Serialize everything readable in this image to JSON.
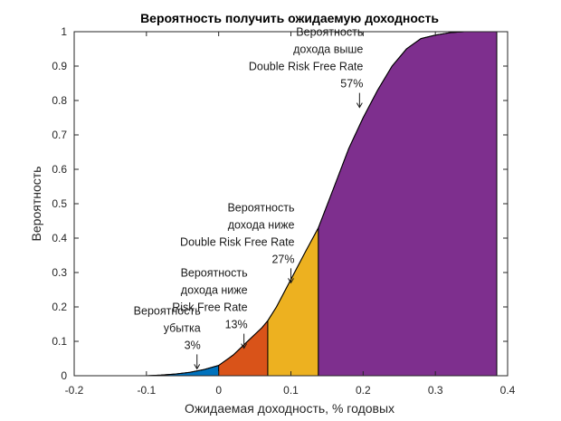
{
  "chart_data": {
    "type": "area",
    "title": "Вероятность получить ожидаемую доходность",
    "xlabel": "Ожидаемая доходность, % годовых",
    "ylabel": "Вероятность",
    "xlim": [
      -0.2,
      0.4
    ],
    "ylim": [
      0,
      1
    ],
    "xticks": [
      -0.2,
      -0.1,
      0,
      0.1,
      0.2,
      0.3,
      0.4
    ],
    "xtick_labels": [
      "-0.2",
      "-0.1",
      "0",
      "0.1",
      "0.2",
      "0.3",
      "0.4"
    ],
    "yticks": [
      0,
      0.1,
      0.2,
      0.3,
      0.4,
      0.5,
      0.6,
      0.7,
      0.8,
      0.9,
      1
    ],
    "ytick_labels": [
      "0",
      "0.1",
      "0.2",
      "0.3",
      "0.4",
      "0.5",
      "0.6",
      "0.7",
      "0.8",
      "0.9",
      "1"
    ],
    "grid": false,
    "curve": {
      "x": [
        -0.1,
        -0.08,
        -0.06,
        -0.04,
        -0.02,
        0,
        0.02,
        0.04,
        0.06,
        0.068,
        0.08,
        0.1,
        0.12,
        0.138,
        0.16,
        0.18,
        0.2,
        0.22,
        0.24,
        0.26,
        0.28,
        0.3,
        0.32,
        0.34,
        0.36,
        0.385
      ],
      "y": [
        0.0,
        0.002,
        0.005,
        0.01,
        0.018,
        0.03,
        0.06,
        0.1,
        0.14,
        0.16,
        0.2,
        0.28,
        0.36,
        0.43,
        0.55,
        0.66,
        0.75,
        0.83,
        0.9,
        0.95,
        0.98,
        0.99,
        0.997,
        1.0,
        1.0,
        1.0
      ]
    },
    "regions": [
      {
        "from": -0.1,
        "to": 0,
        "color": "#0072BD"
      },
      {
        "from": 0,
        "to": 0.068,
        "color": "#D95319"
      },
      {
        "from": 0.068,
        "to": 0.138,
        "color": "#EDB120"
      },
      {
        "from": 0.138,
        "to": 0.385,
        "color": "#7E2F8E"
      }
    ],
    "annotations": [
      {
        "lines": [
          "Вероятность",
          "убытка",
          "3%"
        ],
        "x": -0.03,
        "y": 0.02,
        "align": "end"
      },
      {
        "lines": [
          "Вероятность",
          "дохода ниже",
          "Risk Free Rate",
          "13%"
        ],
        "x": 0.035,
        "y": 0.08,
        "align": "end"
      },
      {
        "lines": [
          "Вероятность",
          "дохода ниже",
          "Double Risk Free Rate",
          "27%"
        ],
        "x": 0.1,
        "y": 0.27,
        "align": "end"
      },
      {
        "lines": [
          "Вероятность",
          "дохода выше",
          "Double Risk Free Rate",
          "57%"
        ],
        "x": 0.195,
        "y": 0.78,
        "align": "end"
      }
    ]
  }
}
